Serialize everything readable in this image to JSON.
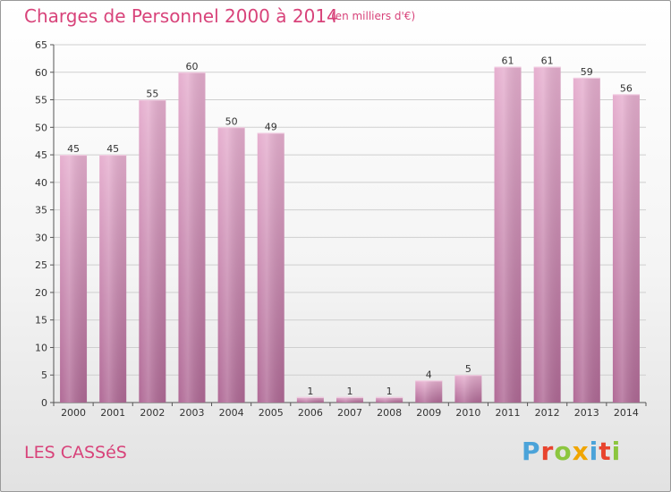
{
  "header": {
    "title": "Charges de Personnel 2000 à 2014",
    "subtitle": "(en milliers d'€)"
  },
  "footer": {
    "town": "LES CASSéS",
    "logo": "Proxiti",
    "logo_colors": [
      "#4ba3d9",
      "#e8442e",
      "#8cc63f",
      "#f0a500",
      "#4ba3d9",
      "#e8442e",
      "#8cc63f"
    ]
  },
  "colors": {
    "accent": "#d8437a",
    "bar_top": "#e6afcf",
    "bar_bottom": "#b06a96",
    "grid": "#cfcfcf"
  },
  "chart_data": {
    "type": "bar",
    "title": "Charges de Personnel 2000 à 2014",
    "subtitle": "(en milliers d'€)",
    "categories": [
      "2000",
      "2001",
      "2002",
      "2003",
      "2004",
      "2005",
      "2006",
      "2007",
      "2008",
      "2009",
      "2010",
      "2011",
      "2012",
      "2013",
      "2014"
    ],
    "values": [
      45,
      45,
      55,
      60,
      50,
      49,
      1,
      1,
      1,
      4,
      5,
      61,
      61,
      59,
      56
    ],
    "ylim": [
      0,
      65
    ],
    "yticks": [
      0,
      5,
      10,
      15,
      20,
      25,
      30,
      35,
      40,
      45,
      50,
      55,
      60,
      65
    ],
    "grid": true,
    "data_labels": true
  }
}
